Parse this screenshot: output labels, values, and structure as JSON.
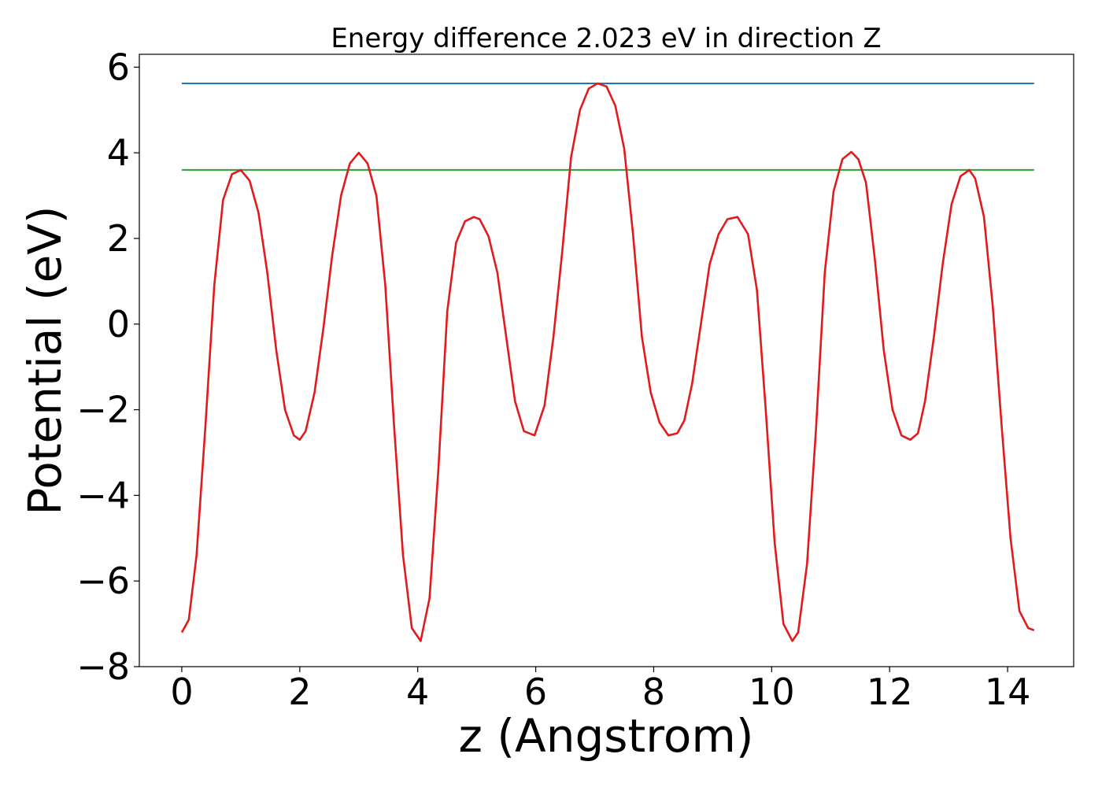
{
  "chart_data": {
    "type": "line",
    "title": "Energy difference 2.023 eV in direction Z",
    "xlabel": "z (Angstrom)",
    "ylabel": "Potential (eV)",
    "xlim": [
      -0.72,
      15.12
    ],
    "ylim": [
      -8.0,
      6.3
    ],
    "xticks": [
      0,
      2,
      4,
      6,
      8,
      10,
      12,
      14
    ],
    "yticks": [
      -8,
      -6,
      -4,
      -2,
      0,
      2,
      4,
      6
    ],
    "xtick_labels": [
      "0",
      "2",
      "4",
      "6",
      "8",
      "10",
      "12",
      "14"
    ],
    "ytick_labels": [
      "−8",
      "−6",
      "−4",
      "−2",
      "0",
      "2",
      "4",
      "6"
    ],
    "grid": false,
    "legend": "none",
    "series": [
      {
        "color": "#1f77b4",
        "x": [
          0.0,
          14.45
        ],
        "y": [
          5.62,
          5.62
        ]
      },
      {
        "color": "#2ca02c",
        "x": [
          0.0,
          14.45
        ],
        "y": [
          3.6,
          3.6
        ]
      },
      {
        "color": "#e31a1c",
        "x": [
          0.0,
          0.12,
          0.25,
          0.4,
          0.55,
          0.7,
          0.85,
          1.0,
          1.15,
          1.3,
          1.45,
          1.6,
          1.75,
          1.9,
          2.0,
          2.1,
          2.25,
          2.4,
          2.55,
          2.7,
          2.85,
          3.0,
          3.15,
          3.3,
          3.45,
          3.6,
          3.75,
          3.9,
          4.05,
          4.2,
          4.35,
          4.5,
          4.65,
          4.8,
          4.95,
          5.05,
          5.2,
          5.35,
          5.5,
          5.65,
          5.8,
          5.98,
          6.15,
          6.3,
          6.45,
          6.6,
          6.75,
          6.9,
          7.05,
          7.2,
          7.35,
          7.5,
          7.65,
          7.8,
          7.95,
          8.1,
          8.25,
          8.4,
          8.52,
          8.65,
          8.8,
          8.95,
          9.1,
          9.25,
          9.42,
          9.6,
          9.75,
          9.9,
          10.05,
          10.2,
          10.35,
          10.45,
          10.6,
          10.75,
          10.9,
          11.05,
          11.2,
          11.35,
          11.47,
          11.6,
          11.75,
          11.9,
          12.05,
          12.2,
          12.35,
          12.48,
          12.6,
          12.75,
          12.9,
          13.05,
          13.2,
          13.35,
          13.45,
          13.6,
          13.75,
          13.9,
          14.05,
          14.2,
          14.35,
          14.45
        ],
        "y": [
          -7.2,
          -6.9,
          -5.4,
          -2.4,
          0.9,
          2.9,
          3.5,
          3.6,
          3.35,
          2.6,
          1.2,
          -0.6,
          -2.0,
          -2.6,
          -2.7,
          -2.5,
          -1.6,
          -0.1,
          1.6,
          3.0,
          3.75,
          4.0,
          3.75,
          3.0,
          0.9,
          -2.4,
          -5.4,
          -7.1,
          -7.4,
          -6.4,
          -3.4,
          0.3,
          1.9,
          2.4,
          2.5,
          2.45,
          2.05,
          1.2,
          -0.3,
          -1.8,
          -2.5,
          -2.6,
          -1.9,
          -0.3,
          1.7,
          3.9,
          5.0,
          5.5,
          5.62,
          5.55,
          5.1,
          4.1,
          2.1,
          -0.3,
          -1.6,
          -2.3,
          -2.6,
          -2.55,
          -2.25,
          -1.4,
          0.0,
          1.4,
          2.1,
          2.45,
          2.5,
          2.1,
          0.8,
          -2.0,
          -5.1,
          -7.0,
          -7.4,
          -7.2,
          -5.6,
          -2.5,
          1.2,
          3.1,
          3.85,
          4.02,
          3.85,
          3.3,
          1.5,
          -0.6,
          -2.0,
          -2.6,
          -2.7,
          -2.55,
          -1.8,
          -0.3,
          1.4,
          2.8,
          3.45,
          3.6,
          3.4,
          2.5,
          0.4,
          -2.4,
          -5.0,
          -6.7,
          -7.1,
          -7.15
        ]
      }
    ]
  }
}
